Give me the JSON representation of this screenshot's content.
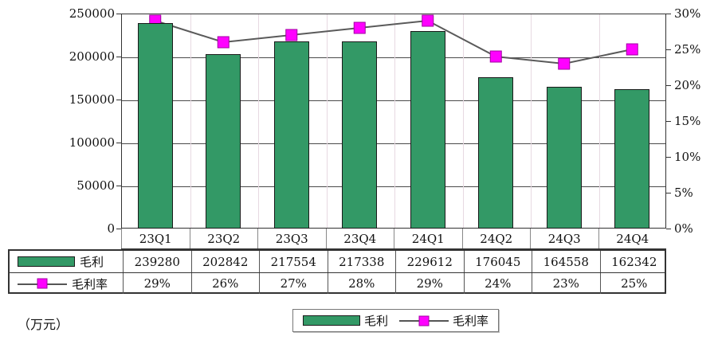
{
  "chart_data": {
    "type": "bar",
    "subtype": "combo-bar-line",
    "title": "",
    "categories": [
      "23Q1",
      "23Q2",
      "23Q3",
      "23Q4",
      "24Q1",
      "24Q2",
      "24Q3",
      "24Q4"
    ],
    "series": [
      {
        "name": "毛利",
        "type": "bar",
        "axis": "left",
        "values": [
          239280,
          202842,
          217554,
          217338,
          229612,
          176045,
          164558,
          162342
        ]
      },
      {
        "name": "毛利率",
        "type": "line",
        "axis": "right",
        "values": [
          29,
          26,
          27,
          28,
          29,
          24,
          23,
          25
        ],
        "labels": [
          "29%",
          "26%",
          "27%",
          "28%",
          "29%",
          "24%",
          "23%",
          "25%"
        ]
      }
    ],
    "left_axis": {
      "min": 0,
      "max": 250000,
      "step": 50000,
      "tick_labels": [
        "250000",
        "200000",
        "150000",
        "100000",
        "50000",
        "0"
      ]
    },
    "right_axis": {
      "min": 0,
      "max": 30,
      "step": 5,
      "tick_labels": [
        "30%",
        "25%",
        "20%",
        "15%",
        "10%",
        "5%",
        "0%"
      ]
    },
    "grid": true,
    "legend_position": "bottom"
  },
  "colors": {
    "bar": "#339966",
    "bar_border": "#1a1a1a",
    "marker": "#ff00ff",
    "marker_border": "#a000a0",
    "line": "#5a5a5a",
    "grid": "#4a4a4a",
    "column_grid": "#e7d9e2"
  },
  "unit_label": "（万元）",
  "legend": {
    "bar_label": "毛利",
    "line_label": "毛利率"
  },
  "table": {
    "row_labels": [
      "毛利",
      "毛利率"
    ],
    "rows": [
      [
        "239280",
        "202842",
        "217554",
        "217338",
        "229612",
        "176045",
        "164558",
        "162342"
      ],
      [
        "29%",
        "26%",
        "27%",
        "28%",
        "29%",
        "24%",
        "23%",
        "25%"
      ]
    ]
  }
}
